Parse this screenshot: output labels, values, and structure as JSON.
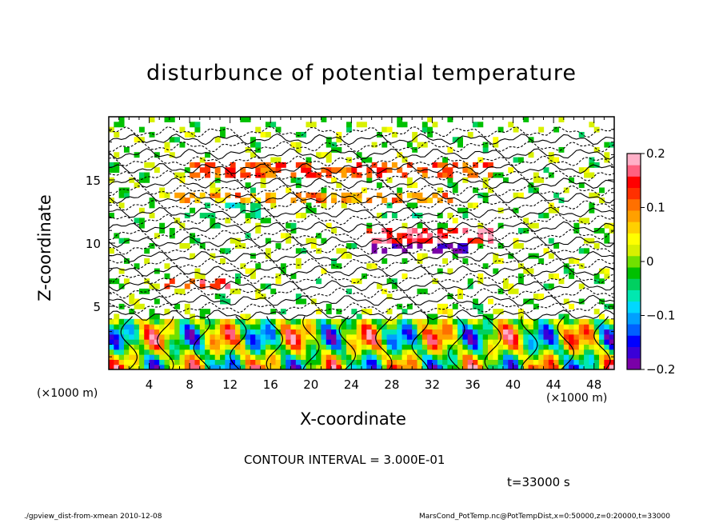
{
  "chart_data": {
    "type": "heatmap",
    "title": "disturbunce of potential temperature",
    "xlabel": "X-coordinate",
    "ylabel": "Z-coordinate",
    "x_unit_left": "(×1000 m)",
    "x_unit_right": "(×1000 m)",
    "x_ticks": [
      "4",
      "8",
      "12",
      "16",
      "20",
      "24",
      "28",
      "32",
      "36",
      "40",
      "44",
      "48"
    ],
    "y_ticks": [
      "5",
      "10",
      "15"
    ],
    "xlim": [
      0,
      50
    ],
    "ylim": [
      0,
      20
    ],
    "colorbar": {
      "ticks": [
        "0.2",
        "0.1",
        "0",
        "−0.1",
        "−0.2"
      ],
      "range": [
        -0.2,
        0.2
      ],
      "colors": [
        "#7a00a8",
        "#3a00d8",
        "#0000ff",
        "#0060ff",
        "#00a0ff",
        "#00d8ff",
        "#00e8b0",
        "#00d060",
        "#00c000",
        "#70e000",
        "#d8f000",
        "#ffff00",
        "#ffd000",
        "#ffa000",
        "#ff7000",
        "#ff3000",
        "#ff0000",
        "#ff6080",
        "#ffb0c8"
      ]
    },
    "annotations": {
      "contour_interval": "CONTOUR INTERVAL = 3.000E-01",
      "time": "t=33000 s"
    },
    "grid": false
  },
  "footer": {
    "left": "./gpview_dist-from-xmean  2010-12-08",
    "right": "MarsCond_PotTemp.nc@PotTempDist,x=0:50000,z=0:20000,t=33000"
  }
}
